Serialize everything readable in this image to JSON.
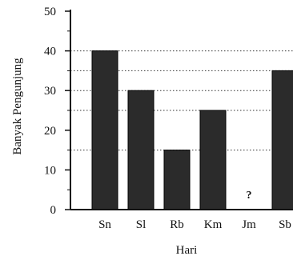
{
  "chart_data": {
    "type": "bar",
    "title": "",
    "xlabel": "Hari",
    "ylabel": "Banyak Pengunjung",
    "categories": [
      "Sn",
      "Sl",
      "Rb",
      "Km",
      "Jm",
      "Sb"
    ],
    "values": [
      40,
      30,
      15,
      25,
      null,
      35
    ],
    "missing_marker": "?",
    "ylim": [
      0,
      50
    ],
    "yticks": [
      0,
      10,
      20,
      30,
      40,
      50
    ],
    "reference_lines": [
      40,
      35,
      30,
      25,
      15
    ],
    "grid": false,
    "bar_color": "#2b2b2b"
  }
}
